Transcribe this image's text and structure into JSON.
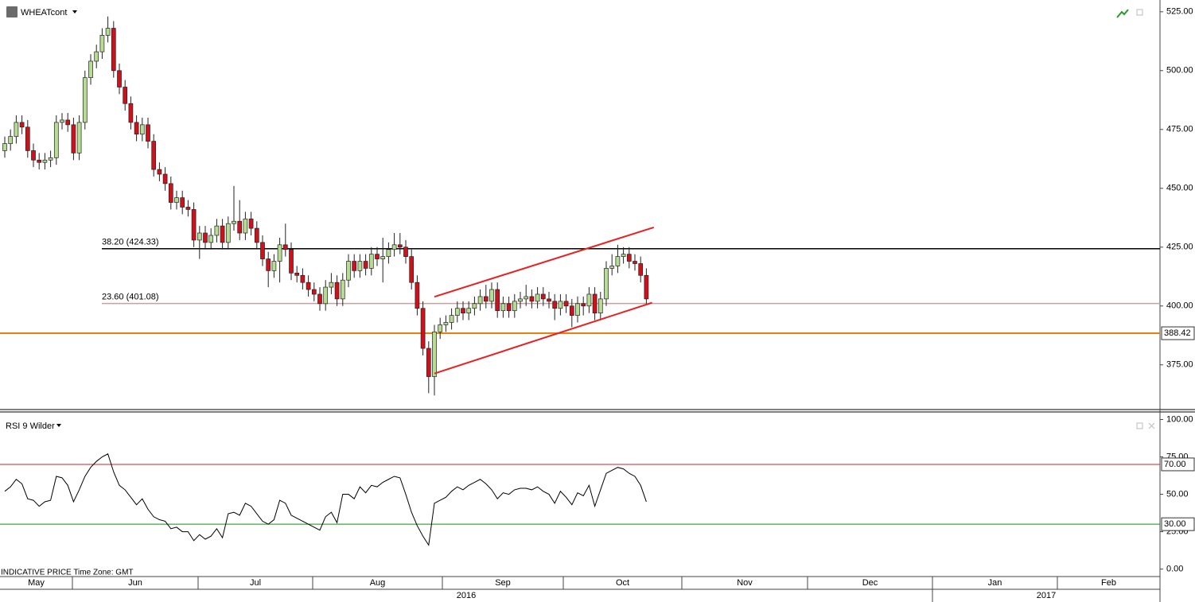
{
  "header": {
    "symbol": "WHEATcont"
  },
  "footer": "INDICATIVE PRICE   Time Zone: GMT",
  "x_axis": {
    "months": [
      "May",
      "Jun",
      "Jul",
      "Aug",
      "Sep",
      "Oct",
      "Nov",
      "Dec",
      "Jan",
      "Feb"
    ],
    "years": [
      "2016",
      "2017"
    ]
  },
  "chart_data": [
    {
      "type": "candlestick",
      "ylim": [
        356,
        530
      ],
      "yticks": [
        {
          "value": 375,
          "label": "375.00"
        },
        {
          "value": 400,
          "label": "400.00"
        },
        {
          "value": 425,
          "label": "425.00"
        },
        {
          "value": 450,
          "label": "450.00"
        },
        {
          "value": 475,
          "label": "475.00"
        },
        {
          "value": 500,
          "label": "500.00"
        },
        {
          "value": 525,
          "label": "525.00"
        }
      ],
      "up_color": "#b7dd92",
      "down_color": "#d0101a",
      "open": [
        466,
        469,
        472,
        478,
        476,
        466,
        462,
        461,
        462,
        463,
        478,
        479,
        477,
        465,
        478,
        497,
        504,
        508,
        515,
        518,
        500,
        493,
        486,
        478,
        473,
        477,
        470,
        458,
        456,
        452,
        444,
        446,
        442,
        441,
        428,
        431,
        427,
        430,
        434,
        427,
        435,
        436,
        431,
        437,
        433,
        427,
        420,
        415,
        419,
        426,
        424,
        414,
        413,
        410,
        407,
        405,
        401,
        408,
        410,
        403,
        411,
        419,
        415,
        419,
        416,
        422,
        420,
        421,
        424,
        426,
        425,
        421,
        410,
        399,
        382,
        370,
        389,
        392,
        393,
        396,
        399,
        397,
        399,
        401,
        404,
        402,
        407,
        398,
        401,
        398,
        402,
        403,
        404,
        402,
        405,
        403,
        402,
        399,
        402,
        400,
        396,
        401,
        400,
        405,
        397,
        403,
        416,
        417,
        421,
        422,
        419,
        418,
        413
      ],
      "high": [
        472,
        475,
        481,
        481,
        479,
        469,
        465,
        465,
        466,
        481,
        482,
        482,
        480,
        481,
        500,
        507,
        511,
        518,
        523,
        521,
        503,
        496,
        489,
        481,
        480,
        480,
        473,
        461,
        459,
        455,
        449,
        449,
        445,
        444,
        434,
        434,
        433,
        437,
        437,
        438,
        451,
        445,
        440,
        440,
        436,
        430,
        423,
        422,
        429,
        435,
        427,
        417,
        416,
        413,
        410,
        408,
        411,
        414,
        413,
        414,
        422,
        422,
        422,
        422,
        425,
        425,
        429,
        427,
        431,
        431,
        428,
        424,
        413,
        402,
        385,
        392,
        395,
        396,
        399,
        402,
        402,
        402,
        404,
        407,
        409,
        410,
        410,
        404,
        404,
        405,
        406,
        409,
        407,
        408,
        408,
        406,
        405,
        405,
        405,
        403,
        404,
        404,
        408,
        408,
        406,
        419,
        422,
        426,
        425,
        425,
        422,
        421,
        416
      ],
      "low": [
        463,
        466,
        469,
        473,
        463,
        459,
        458,
        458,
        459,
        460,
        475,
        474,
        462,
        462,
        475,
        494,
        501,
        505,
        512,
        497,
        490,
        483,
        475,
        470,
        470,
        467,
        455,
        453,
        449,
        441,
        441,
        439,
        438,
        425,
        420,
        424,
        424,
        427,
        424,
        424,
        432,
        428,
        428,
        430,
        424,
        417,
        408,
        412,
        410,
        421,
        411,
        410,
        407,
        404,
        402,
        398,
        398,
        405,
        400,
        400,
        408,
        412,
        412,
        413,
        413,
        417,
        410,
        418,
        421,
        422,
        418,
        407,
        396,
        379,
        363,
        362,
        386,
        389,
        390,
        393,
        394,
        394,
        396,
        398,
        399,
        399,
        395,
        395,
        395,
        395,
        399,
        400,
        399,
        399,
        400,
        399,
        394,
        396,
        397,
        391,
        393,
        396,
        397,
        394,
        394,
        400,
        413,
        414,
        418,
        416,
        415,
        410,
        401
      ],
      "close": [
        469,
        472,
        478,
        476,
        466,
        462,
        461,
        462,
        463,
        478,
        479,
        477,
        465,
        478,
        497,
        504,
        508,
        515,
        518,
        500,
        493,
        486,
        478,
        473,
        477,
        470,
        458,
        456,
        452,
        444,
        446,
        442,
        441,
        428,
        431,
        427,
        430,
        434,
        427,
        435,
        436,
        431,
        437,
        433,
        427,
        420,
        415,
        419,
        426,
        424,
        414,
        413,
        410,
        407,
        405,
        401,
        408,
        410,
        403,
        411,
        419,
        415,
        419,
        416,
        422,
        420,
        421,
        424,
        426,
        425,
        421,
        410,
        399,
        382,
        370,
        389,
        392,
        393,
        396,
        399,
        397,
        399,
        401,
        404,
        402,
        407,
        398,
        401,
        398,
        402,
        403,
        404,
        402,
        405,
        403,
        402,
        399,
        402,
        400,
        396,
        401,
        400,
        405,
        397,
        403,
        416,
        417,
        421,
        422,
        419,
        418,
        413,
        403
      ],
      "levels": [
        {
          "value": 424.33,
          "label": "38.20 (424.33)",
          "color": "#000000"
        },
        {
          "value": 401.08,
          "label": "23.60 (401.08)",
          "color": "#c9a0a0"
        }
      ],
      "price_line": {
        "value": 388.42,
        "color": "#e8820c"
      },
      "trendlines": [
        {
          "color": "#e82020",
          "x": [
            75,
            113.3
          ],
          "y": [
            403.9,
            433.4
          ]
        },
        {
          "color": "#e82020",
          "x": [
            75,
            113
          ],
          "y": [
            371.3,
            401.4
          ]
        }
      ]
    },
    {
      "type": "line",
      "title": "RSI 9 Wilder",
      "ylim": [
        -5,
        104
      ],
      "yticks": [
        {
          "value": 0,
          "label": "0.00"
        },
        {
          "value": 25,
          "label": "25.00"
        },
        {
          "value": 50,
          "label": "50.00"
        },
        {
          "value": 75,
          "label": "75.00"
        },
        {
          "value": 100,
          "label": "100.00"
        }
      ],
      "color": "#000000",
      "values": [
        52,
        55,
        60,
        57,
        47,
        46,
        42,
        45,
        46,
        62,
        61,
        56,
        45,
        53,
        62,
        68,
        72,
        75,
        77,
        65,
        56,
        53,
        48,
        43,
        47,
        40,
        35,
        33,
        32,
        27,
        28,
        25,
        25,
        19,
        23,
        20,
        22,
        27,
        21,
        37,
        38,
        36,
        44,
        42,
        37,
        32,
        30,
        33,
        46,
        44,
        36,
        34,
        32,
        30,
        28,
        26,
        35,
        38,
        31,
        50,
        50,
        47,
        55,
        51,
        56,
        55,
        58,
        60,
        62,
        61,
        50,
        38,
        29,
        22,
        16,
        44,
        46,
        48,
        52,
        55,
        53,
        56,
        58,
        60,
        57,
        53,
        47,
        51,
        50,
        53,
        54,
        54,
        53,
        55,
        52,
        50,
        44,
        52,
        48,
        43,
        51,
        49,
        56,
        42,
        53,
        64,
        66,
        68,
        67,
        64,
        62,
        56,
        45
      ],
      "levels": [
        {
          "value": 70,
          "label": "70.00",
          "color": "#d42020"
        },
        {
          "value": 30,
          "label": "30.00",
          "color": "#1a8a1a"
        }
      ]
    }
  ]
}
